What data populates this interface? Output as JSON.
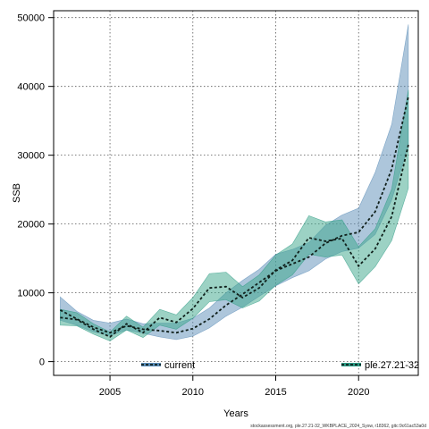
{
  "chart_data": {
    "type": "area",
    "xlabel": "Years",
    "ylabel": "SSB",
    "xlim": [
      2001.6,
      2023.6
    ],
    "ylim": [
      -2000,
      51000
    ],
    "x_ticks": [
      2005,
      2010,
      2015,
      2020
    ],
    "y_ticks": [
      0,
      10000,
      20000,
      30000,
      40000,
      50000
    ],
    "x_tick_labels": [
      "2005",
      "2010",
      "2015",
      "2020"
    ],
    "y_tick_labels": [
      "0",
      "10000",
      "20000",
      "30000",
      "40000",
      "50000"
    ],
    "grid": true,
    "legend_position": "bottom",
    "footer": "stockassessment.org, ple.27.21-32_WKBPLACE_2024_Sysw, r18362, gitc:9c61ac53a0d",
    "series": [
      {
        "name": "current",
        "color": "#5b8db8",
        "fill": "#5b8db8",
        "x": [
          2002,
          2003,
          2004,
          2005,
          2006,
          2007,
          2008,
          2009,
          2010,
          2011,
          2012,
          2013,
          2014,
          2015,
          2016,
          2017,
          2018,
          2019,
          2020,
          2021,
          2022,
          2023
        ],
        "mid": [
          7500,
          6200,
          5000,
          4200,
          5200,
          4700,
          4500,
          4200,
          4800,
          6200,
          8200,
          9800,
          11500,
          13200,
          14200,
          15200,
          17200,
          18300,
          18800,
          21800,
          28000,
          38500
        ],
        "low": [
          6000,
          5300,
          4300,
          3800,
          4600,
          4100,
          3600,
          3200,
          3700,
          4900,
          6600,
          7900,
          9500,
          11000,
          12200,
          13200,
          14900,
          16000,
          16500,
          18500,
          23500,
          31500
        ],
        "high": [
          9400,
          7300,
          6000,
          5600,
          6200,
          5500,
          5600,
          5600,
          6300,
          7800,
          10000,
          11800,
          13400,
          15600,
          16300,
          17300,
          19800,
          21300,
          22300,
          27500,
          34500,
          49000
        ]
      },
      {
        "name": "ple.27.21-32",
        "color": "#2e9b85",
        "fill": "#3aa58a",
        "x": [
          2002,
          2003,
          2004,
          2005,
          2006,
          2007,
          2008,
          2009,
          2010,
          2011,
          2012,
          2013,
          2014,
          2015,
          2016,
          2017,
          2018,
          2019,
          2020,
          2021,
          2022,
          2023
        ],
        "mid": [
          6400,
          6100,
          4700,
          3600,
          5500,
          4200,
          6400,
          5700,
          7700,
          10700,
          10900,
          9300,
          10700,
          13300,
          14700,
          18000,
          17500,
          17900,
          13900,
          16400,
          21100,
          31500
        ],
        "low": [
          5300,
          5200,
          4000,
          3000,
          4600,
          3500,
          5300,
          4700,
          6300,
          8700,
          9000,
          7800,
          8800,
          11100,
          12600,
          15600,
          15200,
          15500,
          11300,
          13800,
          17600,
          25200
        ],
        "high": [
          7600,
          7100,
          5500,
          4300,
          6600,
          5000,
          7600,
          6800,
          9300,
          12800,
          13000,
          10900,
          12600,
          15500,
          17100,
          21200,
          20300,
          20600,
          16700,
          19300,
          25100,
          39500
        ]
      }
    ]
  }
}
